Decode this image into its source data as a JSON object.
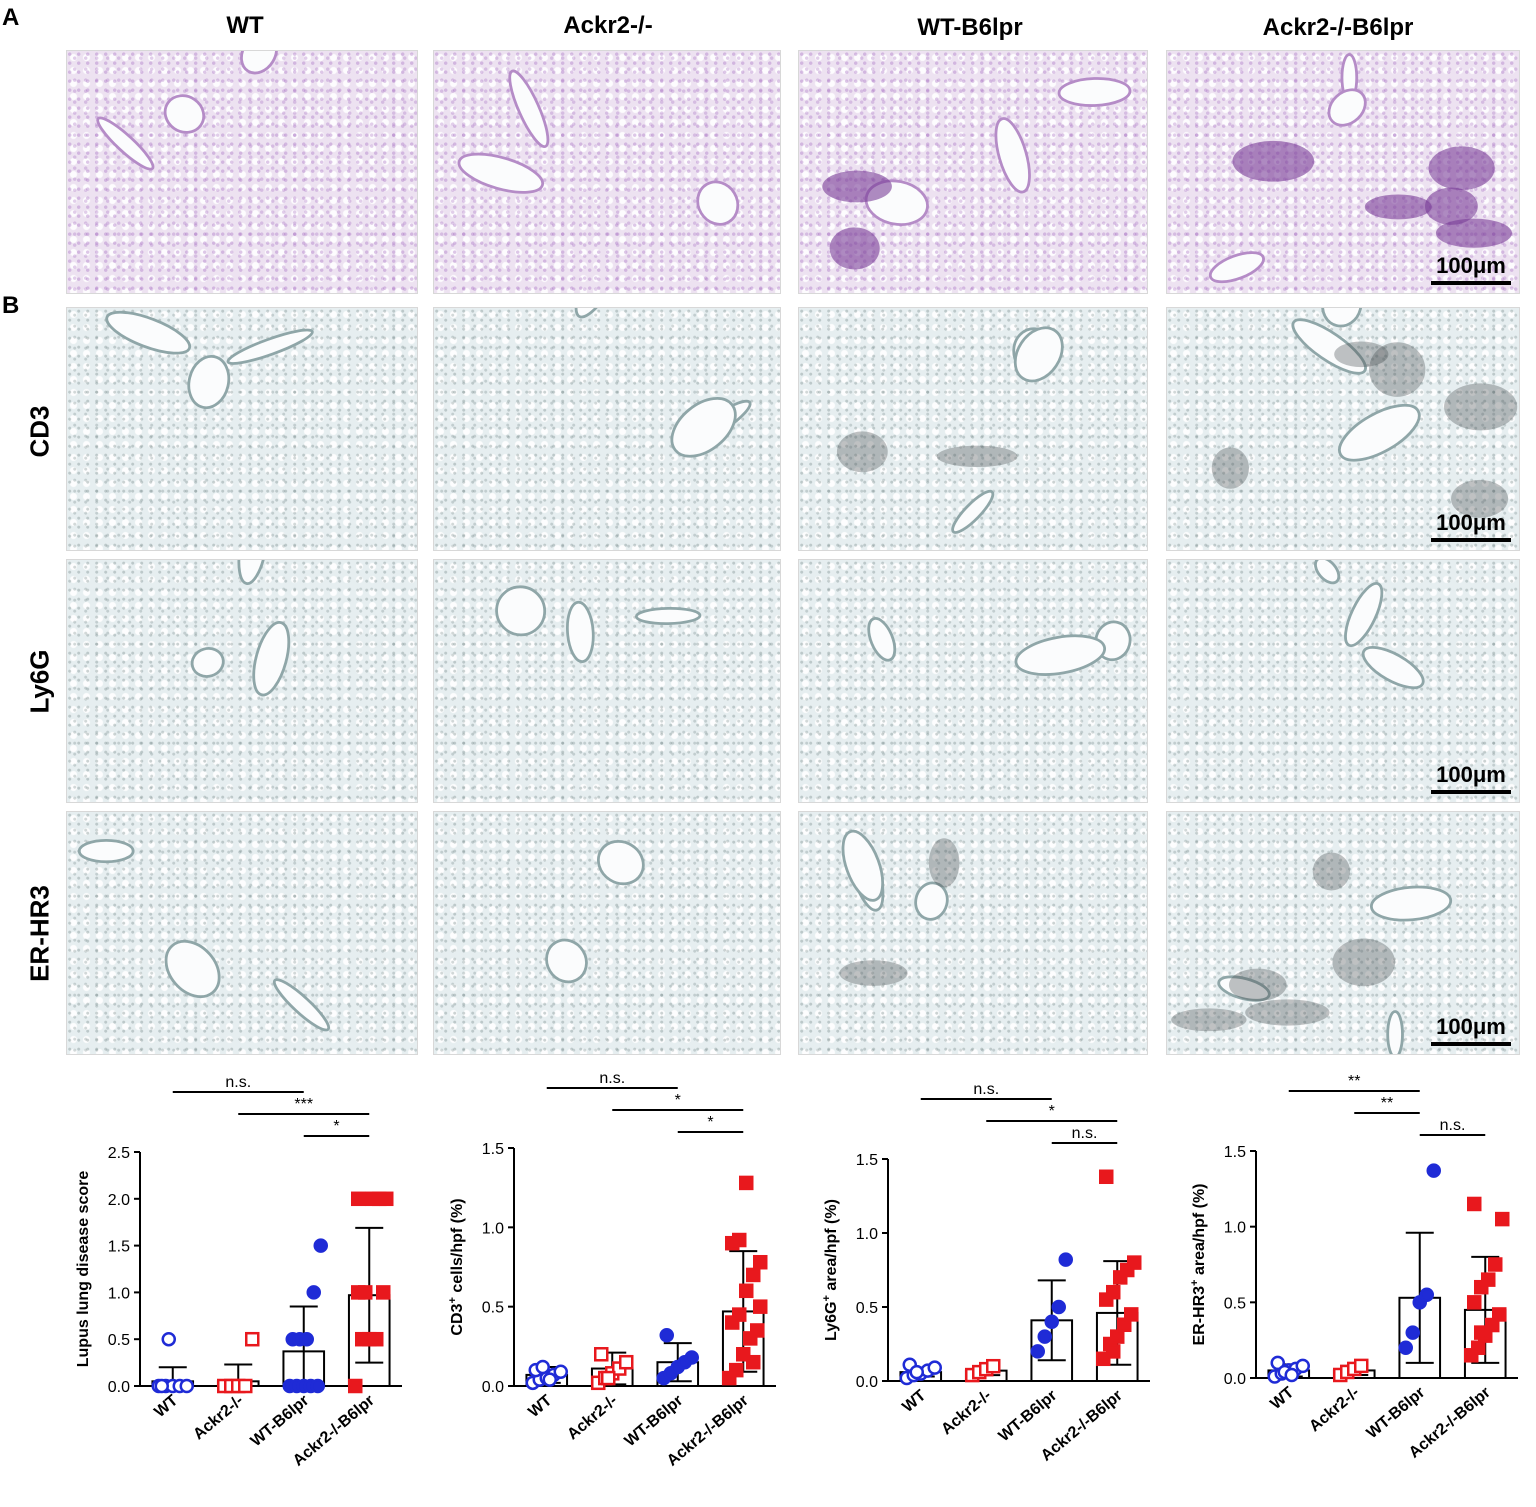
{
  "panels": {
    "a_label": "A",
    "b_label": "B"
  },
  "columns": [
    "WT",
    "Ackr2-/-",
    "WT-B6lpr",
    "Ackr2-/-B6lpr"
  ],
  "rows": [
    "CD3",
    "Ly6G",
    "ER-HR3"
  ],
  "scale_bar": "100μm",
  "colors": {
    "he_stain": "#e8d8ee",
    "ihc_stain": "#e4ecee",
    "blue": "#1f2bd6",
    "red": "#e8181d"
  },
  "chart_data": [
    {
      "type": "scatter",
      "ylabel": "Lupus lung disease score",
      "ylim": [
        0,
        2.5
      ],
      "yticks": [
        "0.0",
        "0.5",
        "1.0",
        "1.5",
        "2.0",
        "2.5"
      ],
      "categories": [
        "WT",
        "Ackr2-/-",
        "WT-B6lpr",
        "Ackr2-/-B6lpr"
      ],
      "means": [
        0.05,
        0.05,
        0.37,
        0.97
      ],
      "sd": [
        0.15,
        0.18,
        0.48,
        0.72
      ],
      "points": [
        [
          0,
          0,
          0,
          0,
          0,
          0,
          0.5
        ],
        [
          0,
          0,
          0,
          0,
          0.5
        ],
        [
          0,
          0,
          0,
          0,
          0,
          0.5,
          0.5,
          0.5,
          1.0,
          1.5
        ],
        [
          0,
          0.5,
          0.5,
          0.5,
          1.0,
          1.0,
          1.0,
          2.0,
          2.0,
          2.0,
          2.0
        ]
      ],
      "brackets": [
        {
          "from": 0,
          "to": 2,
          "label": "n.s."
        },
        {
          "from": 1,
          "to": 3,
          "label": "***"
        },
        {
          "from": 2,
          "to": 3,
          "label": "*"
        }
      ]
    },
    {
      "type": "scatter",
      "ylabel": "CD3+ cells/hpf (%)",
      "ylim": [
        0,
        1.5
      ],
      "yticks": [
        "0.0",
        "0.5",
        "1.0",
        "1.5"
      ],
      "categories": [
        "WT",
        "Ackr2-/-",
        "WT-B6lpr",
        "Ackr2-/-B6lpr"
      ],
      "means": [
        0.07,
        0.11,
        0.15,
        0.47
      ],
      "sd": [
        0.05,
        0.1,
        0.12,
        0.38
      ],
      "points": [
        [
          0.02,
          0.04,
          0.05,
          0.07,
          0.09,
          0.1,
          0.12,
          0.04
        ],
        [
          0.02,
          0.05,
          0.08,
          0.11,
          0.15,
          0.2,
          0.05
        ],
        [
          0.05,
          0.08,
          0.12,
          0.15,
          0.18,
          0.32
        ],
        [
          0.05,
          0.1,
          0.2,
          0.3,
          0.35,
          0.4,
          0.45,
          0.6,
          0.7,
          0.78,
          0.9,
          0.92,
          1.28,
          0.15,
          0.5
        ]
      ],
      "brackets": [
        {
          "from": 0,
          "to": 2,
          "label": "n.s."
        },
        {
          "from": 1,
          "to": 3,
          "label": "*"
        },
        {
          "from": 2,
          "to": 3,
          "label": "*"
        }
      ]
    },
    {
      "type": "scatter",
      "ylabel": "Ly6G+ area/hpf (%)",
      "ylim": [
        0,
        1.5
      ],
      "yticks": [
        "0.0",
        "0.5",
        "1.0",
        "1.5"
      ],
      "categories": [
        "WT",
        "Ackr2-/-",
        "WT-B6lpr",
        "Ackr2-/-B6lpr"
      ],
      "means": [
        0.06,
        0.07,
        0.41,
        0.46
      ],
      "sd": [
        0.03,
        0.03,
        0.27,
        0.35
      ],
      "points": [
        [
          0.02,
          0.04,
          0.05,
          0.07,
          0.09,
          0.11,
          0.06
        ],
        [
          0.04,
          0.06,
          0.08,
          0.1
        ],
        [
          0.2,
          0.3,
          0.4,
          0.5,
          0.82
        ],
        [
          0.15,
          0.25,
          0.3,
          0.38,
          0.45,
          0.55,
          0.6,
          0.7,
          0.75,
          0.8,
          1.38,
          0.2
        ]
      ],
      "brackets": [
        {
          "from": 0,
          "to": 2,
          "label": "n.s."
        },
        {
          "from": 1,
          "to": 3,
          "label": "*"
        },
        {
          "from": 2,
          "to": 3,
          "label": "n.s."
        }
      ]
    },
    {
      "type": "scatter",
      "ylabel": "ER-HR3+ area/hpf (%)",
      "ylim": [
        0,
        1.5
      ],
      "yticks": [
        "0.0",
        "0.5",
        "1.0",
        "1.5"
      ],
      "categories": [
        "WT",
        "Ackr2-/-",
        "WT-B6lpr",
        "Ackr2-/-B6lpr"
      ],
      "means": [
        0.05,
        0.05,
        0.53,
        0.45
      ],
      "sd": [
        0.04,
        0.03,
        0.43,
        0.35
      ],
      "points": [
        [
          0.01,
          0.03,
          0.05,
          0.06,
          0.08,
          0.1,
          0.04,
          0.02
        ],
        [
          0.02,
          0.04,
          0.06,
          0.08
        ],
        [
          0.2,
          0.3,
          0.5,
          0.55,
          1.37
        ],
        [
          0.15,
          0.2,
          0.28,
          0.35,
          0.42,
          0.5,
          0.6,
          0.65,
          0.75,
          1.05,
          1.15,
          0.3
        ]
      ],
      "brackets": [
        {
          "from": 0,
          "to": 2,
          "label": "**"
        },
        {
          "from": 1,
          "to": 2,
          "label": "**"
        },
        {
          "from": 2,
          "to": 3,
          "label": "n.s."
        }
      ]
    }
  ]
}
